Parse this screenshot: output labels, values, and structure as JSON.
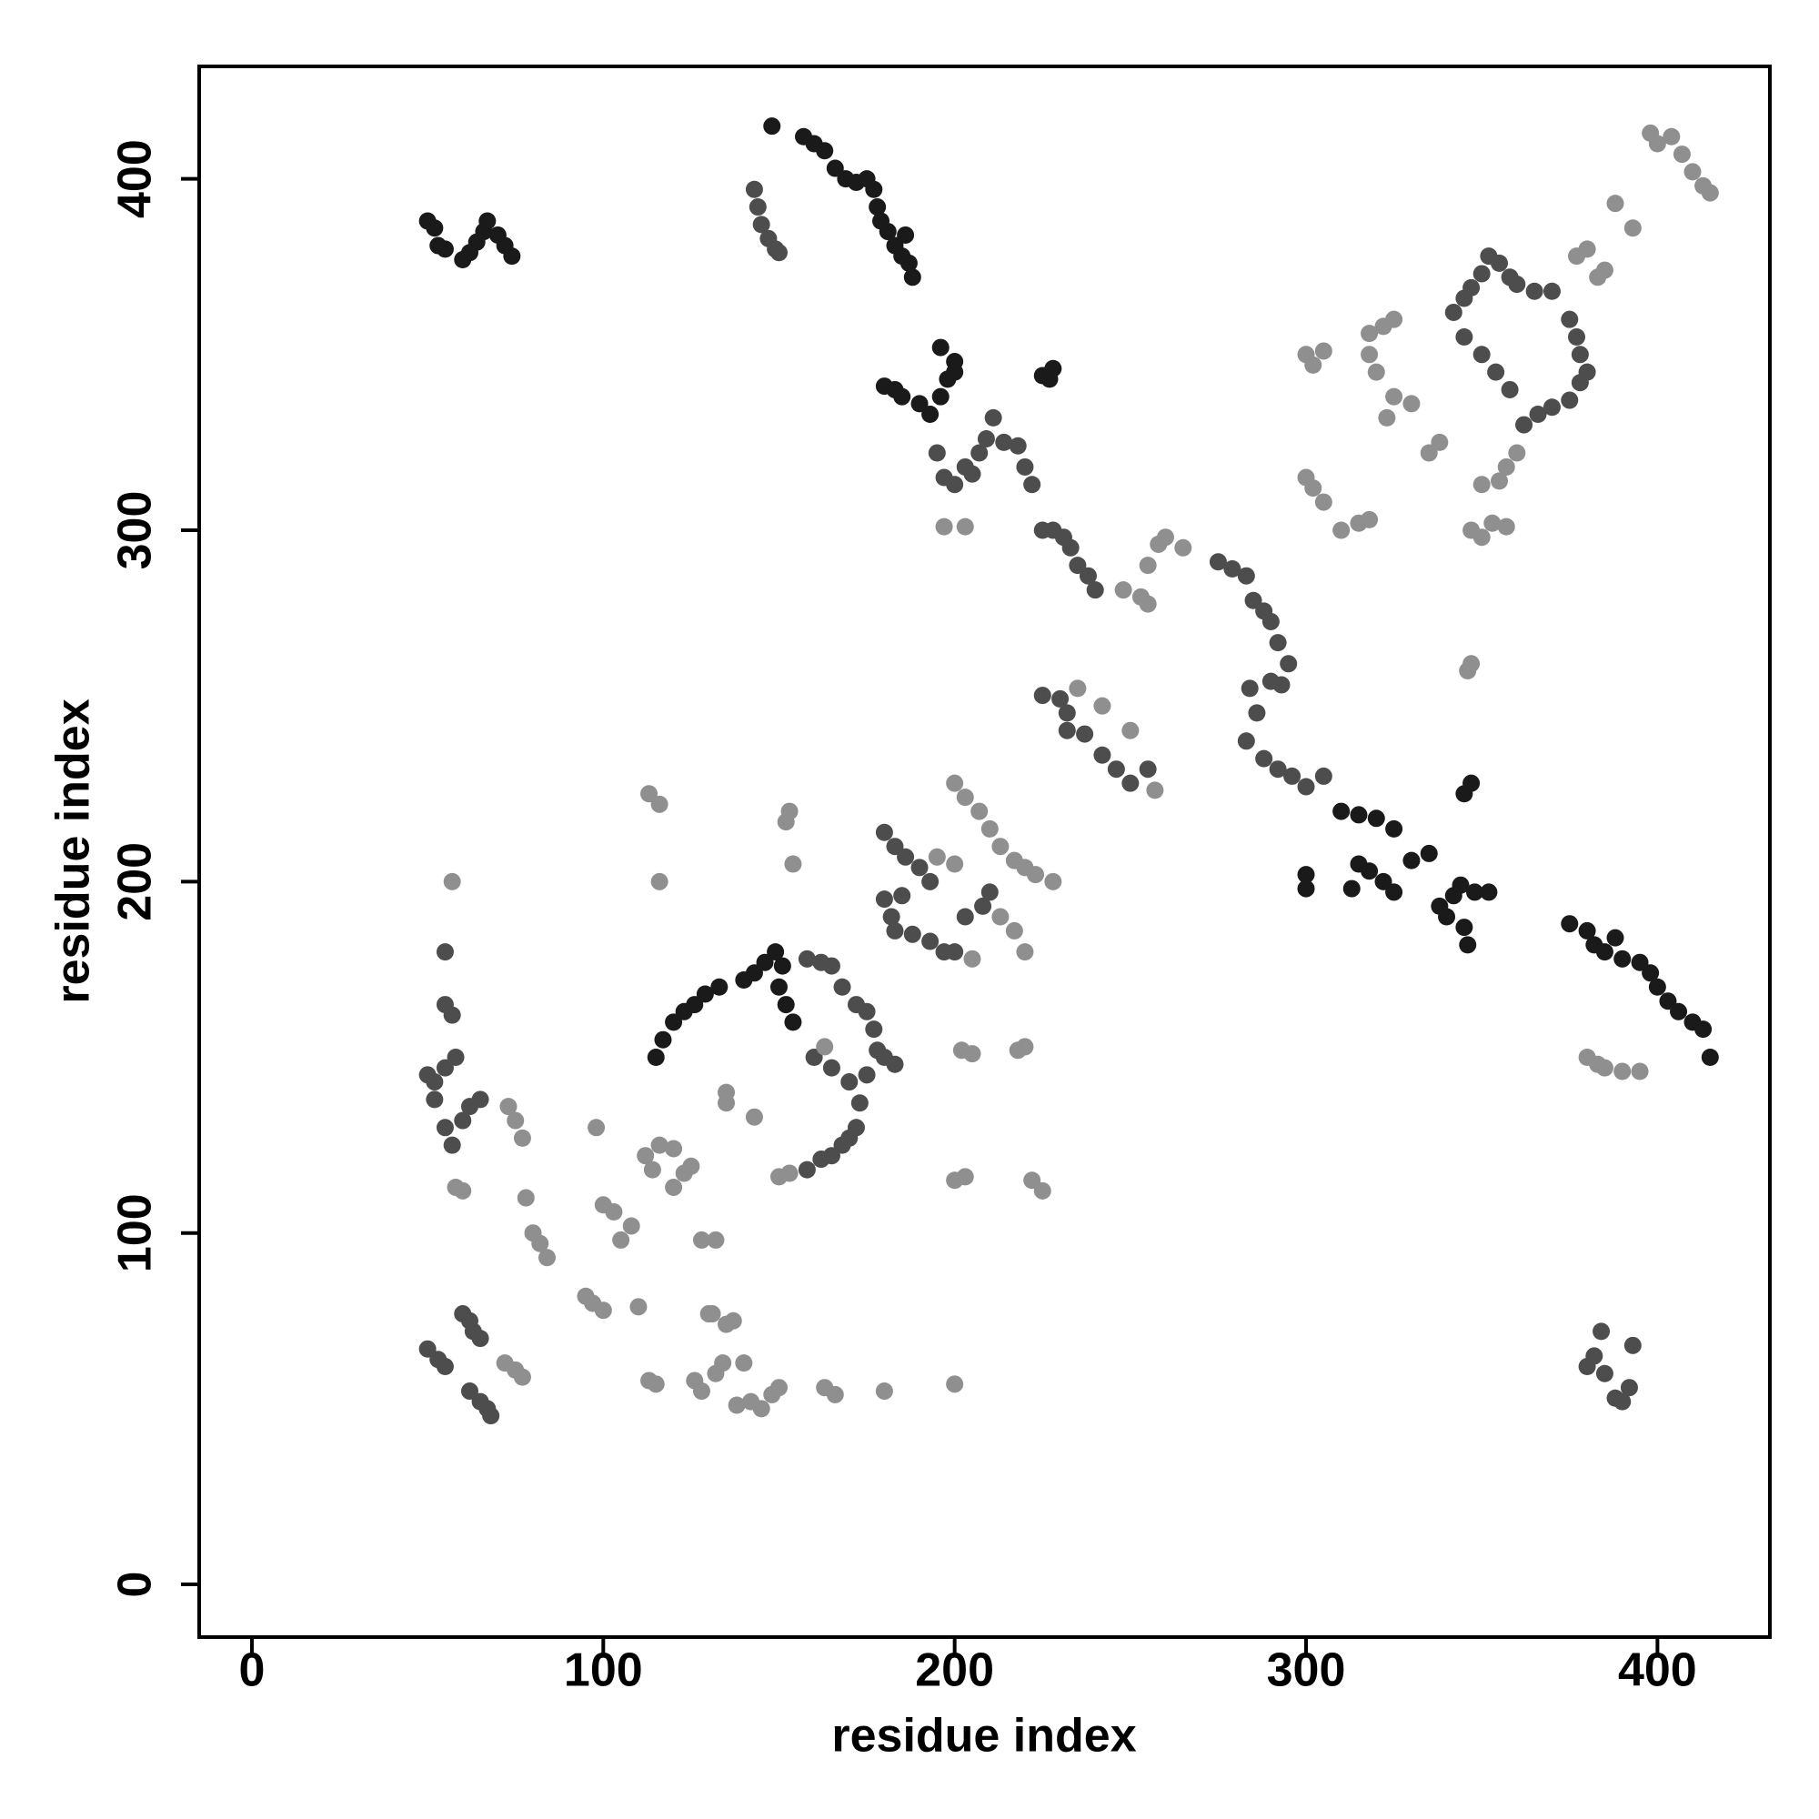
{
  "chart_data": {
    "type": "scatter",
    "xlabel": "residue index",
    "ylabel": "residue index",
    "xlim": [
      -15,
      432
    ],
    "ylim": [
      -15,
      432
    ],
    "xticks": [
      0,
      100,
      200,
      300,
      400
    ],
    "yticks": [
      0,
      100,
      200,
      300,
      400
    ],
    "series": [
      {
        "color": "#1a1a1a",
        "x": [
          50,
          52,
          53,
          55,
          60,
          62,
          64,
          66,
          67,
          70,
          72,
          74,
          148,
          157,
          160,
          163,
          166,
          169,
          172,
          175,
          177,
          178,
          179,
          181,
          183,
          185,
          186,
          187,
          188,
          180,
          183,
          185,
          190,
          193,
          196,
          198,
          200,
          196,
          200,
          375,
          380,
          382,
          385,
          388,
          390,
          395,
          398,
          400,
          403,
          406,
          410,
          413,
          415,
          115,
          117,
          120,
          123,
          126,
          129,
          133,
          140,
          143,
          146,
          149,
          151,
          150,
          152,
          154,
          225,
          227,
          228,
          310,
          315,
          320,
          325,
          315,
          318,
          322,
          325,
          313,
          300,
          300,
          330,
          335,
          338,
          340,
          342,
          344,
          345,
          346,
          348,
          352,
          345,
          347
        ],
        "y": [
          388,
          386,
          381,
          380,
          377,
          379,
          382,
          385,
          388,
          384,
          381,
          378,
          415,
          412,
          410,
          408,
          403,
          400,
          399,
          400,
          397,
          392,
          388,
          385,
          381,
          378,
          384,
          376,
          372,
          341,
          340,
          338,
          336,
          333,
          338,
          343,
          345,
          352,
          348,
          188,
          186,
          182,
          180,
          184,
          178,
          177,
          174,
          170,
          166,
          163,
          160,
          158,
          150,
          150,
          155,
          160,
          163,
          165,
          168,
          170,
          172,
          174,
          177,
          180,
          176,
          170,
          165,
          160,
          344,
          343,
          346,
          220,
          219,
          218,
          215,
          205,
          203,
          200,
          197,
          198,
          202,
          198,
          206,
          208,
          193,
          190,
          196,
          199,
          187,
          182,
          197,
          197,
          225,
          228
        ]
      },
      {
        "color": "#4d4d4d",
        "x": [
          143,
          144,
          145,
          147,
          149,
          150,
          195,
          197,
          200,
          203,
          205,
          207,
          209,
          211,
          214,
          218,
          220,
          222,
          225,
          228,
          231,
          233,
          235,
          238,
          240,
          275,
          279,
          283,
          285,
          288,
          290,
          292,
          295,
          293,
          290,
          284,
          286,
          283,
          288,
          292,
          296,
          300,
          305,
          345,
          347,
          350,
          352,
          355,
          358,
          360,
          365,
          370,
          375,
          377,
          378,
          380,
          378,
          375,
          370,
          366,
          362,
          358,
          354,
          350,
          345,
          342,
          380,
          382,
          384,
          385,
          388,
          390,
          392,
          393,
          50,
          52,
          55,
          58,
          52,
          55,
          57,
          60,
          62,
          65,
          55,
          55,
          57,
          50,
          53,
          55,
          60,
          62,
          63,
          65,
          62,
          65,
          67,
          68,
          158,
          162,
          165,
          168,
          172,
          175,
          177,
          178,
          180,
          183,
          175,
          170,
          165,
          160,
          173,
          172,
          170,
          168,
          165,
          162,
          158,
          180,
          183,
          186,
          190,
          193,
          185,
          180,
          182,
          183,
          188,
          193,
          197,
          200,
          203,
          208,
          210,
          225,
          230,
          232,
          232,
          237,
          242,
          246,
          250,
          255
        ],
        "y": [
          397,
          392,
          387,
          383,
          380,
          379,
          322,
          315,
          313,
          318,
          316,
          322,
          326,
          332,
          325,
          324,
          318,
          313,
          300,
          300,
          298,
          295,
          290,
          287,
          283,
          291,
          289,
          287,
          280,
          277,
          274,
          268,
          262,
          256,
          257,
          255,
          248,
          240,
          235,
          232,
          230,
          227,
          230,
          366,
          369,
          373,
          378,
          376,
          372,
          370,
          368,
          368,
          360,
          355,
          350,
          345,
          342,
          337,
          335,
          333,
          330,
          340,
          345,
          350,
          355,
          362,
          62,
          65,
          72,
          60,
          53,
          52,
          56,
          68,
          145,
          143,
          147,
          150,
          138,
          130,
          125,
          132,
          136,
          138,
          180,
          165,
          162,
          67,
          64,
          62,
          77,
          75,
          72,
          70,
          55,
          52,
          50,
          48,
          178,
          177,
          176,
          170,
          165,
          163,
          158,
          152,
          150,
          148,
          145,
          143,
          147,
          150,
          137,
          130,
          127,
          125,
          122,
          121,
          118,
          214,
          210,
          207,
          204,
          200,
          196,
          195,
          190,
          186,
          185,
          183,
          180,
          180,
          190,
          193,
          197,
          253,
          252,
          248,
          243,
          242,
          236,
          232,
          228,
          232
        ]
      },
      {
        "color": "#8f8f8f",
        "x": [
          197,
          203,
          248,
          253,
          255,
          255,
          258,
          260,
          265,
          235,
          242,
          257,
          250,
          346,
          347,
          300,
          302,
          305,
          318,
          322,
          325,
          318,
          320,
          325,
          330,
          323,
          335,
          338,
          360,
          357,
          355,
          350,
          347,
          350,
          353,
          357,
          300,
          302,
          305,
          310,
          315,
          318,
          377,
          380,
          383,
          385,
          388,
          393,
          398,
          400,
          404,
          407,
          410,
          413,
          415,
          380,
          383,
          385,
          390,
          395,
          73,
          75,
          77,
          57,
          58,
          60,
          72,
          75,
          77,
          78,
          80,
          82,
          84,
          95,
          97,
          100,
          98,
          100,
          103,
          105,
          108,
          110,
          113,
          115,
          112,
          114,
          116,
          116,
          113,
          116,
          120,
          120,
          123,
          125,
          126,
          128,
          130,
          132,
          134,
          135,
          138,
          140,
          142,
          145,
          148,
          150,
          163,
          166,
          180,
          200,
          128,
          132,
          135,
          135,
          143,
          163,
          153,
          150,
          154,
          152,
          153,
          195,
          200,
          205,
          213,
          217,
          220,
          200,
          203,
          207,
          210,
          213,
          217,
          220,
          223,
          228,
          202,
          205,
          218,
          220,
          200,
          203,
          222,
          225,
          131,
          137
        ],
        "y": [
          301,
          301,
          283,
          281,
          279,
          290,
          296,
          298,
          295,
          255,
          250,
          226,
          243,
          260,
          262,
          350,
          347,
          351,
          356,
          358,
          360,
          350,
          345,
          338,
          336,
          332,
          322,
          325,
          322,
          318,
          314,
          313,
          300,
          298,
          302,
          301,
          315,
          312,
          308,
          300,
          302,
          303,
          378,
          380,
          372,
          374,
          393,
          386,
          413,
          410,
          412,
          407,
          402,
          398,
          396,
          150,
          148,
          147,
          146,
          146,
          136,
          132,
          127,
          200,
          113,
          112,
          63,
          61,
          59,
          110,
          100,
          97,
          93,
          82,
          80,
          78,
          130,
          108,
          106,
          98,
          102,
          79,
          58,
          57,
          122,
          118,
          125,
          200,
          225,
          222,
          124,
          113,
          117,
          119,
          58,
          55,
          77,
          60,
          63,
          74,
          51,
          63,
          52,
          50,
          54,
          56,
          56,
          54,
          55,
          57,
          98,
          98,
          140,
          137,
          133,
          153,
          117,
          116,
          205,
          217,
          220,
          207,
          205,
          178,
          190,
          186,
          180,
          228,
          224,
          220,
          215,
          210,
          206,
          204,
          202,
          200,
          152,
          151,
          152,
          153,
          115,
          116,
          115,
          112,
          77,
          75
        ]
      }
    ]
  }
}
